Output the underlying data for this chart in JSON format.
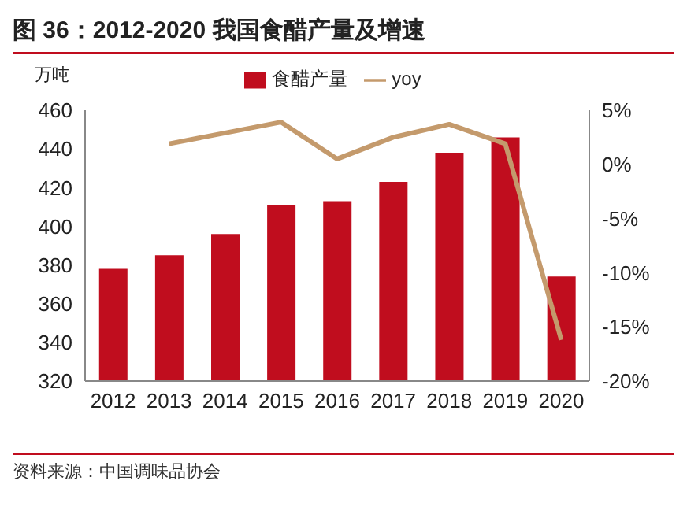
{
  "chart_data": {
    "type": "bar",
    "title": "图 36：2012-2020 我国食醋产量及增速",
    "ylabel": "万吨",
    "categories": [
      "2012",
      "2013",
      "2014",
      "2015",
      "2016",
      "2017",
      "2018",
      "2019",
      "2020"
    ],
    "series": [
      {
        "name": "食醋产量",
        "color": "#c00d1e",
        "values": [
          378,
          385,
          396,
          411,
          413,
          423,
          438,
          446,
          374
        ]
      },
      {
        "name": "yoy",
        "type": "line",
        "axis": "y2",
        "color": "#c49a6c",
        "values": [
          null,
          1.9,
          2.9,
          3.9,
          0.5,
          2.5,
          3.7,
          1.9,
          -16.2
        ]
      }
    ],
    "ylim": [
      320,
      460
    ],
    "yticks": [
      320,
      340,
      360,
      380,
      400,
      420,
      440,
      460
    ],
    "y2lim": [
      -20,
      5
    ],
    "y2ticks": [
      {
        "value": -20,
        "label": "-20%"
      },
      {
        "value": -15,
        "label": "-15%"
      },
      {
        "value": -10,
        "label": "-10%"
      },
      {
        "value": -5,
        "label": "-5%"
      },
      {
        "value": 0,
        "label": "0%"
      },
      {
        "value": 5,
        "label": "5%"
      }
    ],
    "legend": "top",
    "grid": false,
    "marker": "none",
    "annotations": [
      "资料来源：中国调味品协会"
    ]
  }
}
